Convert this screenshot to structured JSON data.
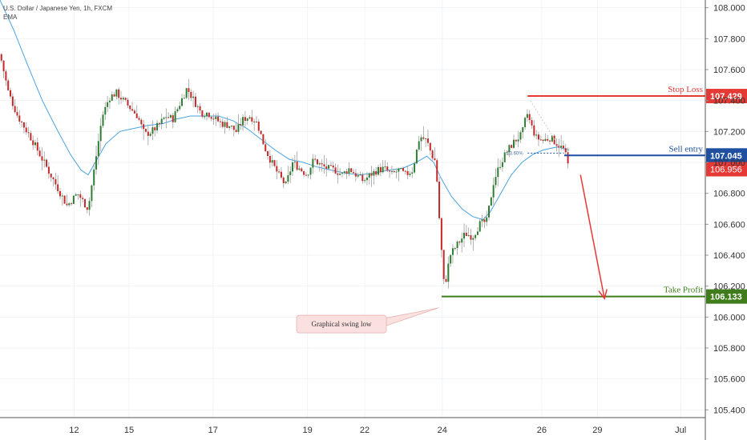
{
  "header": {
    "symbol": "U.S. Dollar / Japanese Yen, 1h, FXCM",
    "indicator": "EMA"
  },
  "colors": {
    "up_candle": "#2e7d32",
    "down_candle": "#c62828",
    "ema": "#4aa3df",
    "stop_loss": "#e53935",
    "sell_entry": "#1e4fa0",
    "take_profit": "#3f7d1c",
    "last_price": "#e53935",
    "grid": "#f0f3f7",
    "axis_text": "#333333"
  },
  "chart_data": {
    "type": "candlestick",
    "ylim": [
      105.35,
      108.05
    ],
    "yticks": [
      "108.000",
      "107.800",
      "107.600",
      "107.400",
      "107.200",
      "107.000",
      "106.800",
      "106.600",
      "106.400",
      "106.200",
      "106.000",
      "105.800",
      "105.600",
      "105.400"
    ],
    "yticks_values": [
      108.0,
      107.8,
      107.6,
      107.4,
      107.2,
      107.0,
      106.8,
      106.6,
      106.4,
      106.2,
      106.0,
      105.8,
      105.6,
      105.4
    ],
    "xticks": [
      {
        "label": "12",
        "pos": 0.105
      },
      {
        "label": "15",
        "pos": 0.183
      },
      {
        "label": "17",
        "pos": 0.302
      },
      {
        "label": "19",
        "pos": 0.436
      },
      {
        "label": "22",
        "pos": 0.517
      },
      {
        "label": "24",
        "pos": 0.627
      },
      {
        "label": "26",
        "pos": 0.768
      },
      {
        "label": "29",
        "pos": 0.847
      },
      {
        "label": "Jul",
        "pos": 0.965
      }
    ],
    "price_path": [
      [
        0.0,
        107.7
      ],
      [
        0.012,
        107.45
      ],
      [
        0.025,
        107.3
      ],
      [
        0.045,
        107.15
      ],
      [
        0.06,
        107.02
      ],
      [
        0.08,
        106.85
      ],
      [
        0.095,
        106.72
      ],
      [
        0.11,
        106.8
      ],
      [
        0.125,
        106.7
      ],
      [
        0.135,
        107.0
      ],
      [
        0.145,
        107.3
      ],
      [
        0.155,
        107.42
      ],
      [
        0.165,
        107.45
      ],
      [
        0.175,
        107.4
      ],
      [
        0.185,
        107.35
      ],
      [
        0.195,
        107.3
      ],
      [
        0.205,
        107.18
      ],
      [
        0.215,
        107.2
      ],
      [
        0.225,
        107.24
      ],
      [
        0.235,
        107.3
      ],
      [
        0.245,
        107.28
      ],
      [
        0.255,
        107.38
      ],
      [
        0.265,
        107.48
      ],
      [
        0.275,
        107.4
      ],
      [
        0.285,
        107.32
      ],
      [
        0.295,
        107.32
      ],
      [
        0.305,
        107.28
      ],
      [
        0.315,
        107.25
      ],
      [
        0.325,
        107.24
      ],
      [
        0.335,
        107.2
      ],
      [
        0.345,
        107.28
      ],
      [
        0.355,
        107.3
      ],
      [
        0.365,
        107.25
      ],
      [
        0.375,
        107.1
      ],
      [
        0.385,
        107.0
      ],
      [
        0.395,
        106.92
      ],
      [
        0.405,
        106.85
      ],
      [
        0.415,
        107.0
      ],
      [
        0.425,
        106.96
      ],
      [
        0.435,
        106.92
      ],
      [
        0.445,
        107.02
      ],
      [
        0.455,
        106.98
      ],
      [
        0.465,
        106.96
      ],
      [
        0.475,
        106.95
      ],
      [
        0.485,
        106.92
      ],
      [
        0.495,
        106.96
      ],
      [
        0.505,
        106.92
      ],
      [
        0.515,
        106.88
      ],
      [
        0.525,
        106.92
      ],
      [
        0.535,
        106.95
      ],
      [
        0.545,
        106.96
      ],
      [
        0.555,
        106.92
      ],
      [
        0.565,
        106.95
      ],
      [
        0.575,
        106.92
      ],
      [
        0.585,
        106.95
      ],
      [
        0.595,
        107.17
      ],
      [
        0.605,
        107.14
      ],
      [
        0.612,
        107.05
      ],
      [
        0.618,
        107.0
      ],
      [
        0.624,
        106.55
      ],
      [
        0.63,
        106.18
      ],
      [
        0.638,
        106.4
      ],
      [
        0.65,
        106.48
      ],
      [
        0.66,
        106.54
      ],
      [
        0.67,
        106.52
      ],
      [
        0.68,
        106.6
      ],
      [
        0.69,
        106.62
      ],
      [
        0.7,
        106.88
      ],
      [
        0.71,
        107.0
      ],
      [
        0.72,
        107.08
      ],
      [
        0.73,
        107.14
      ],
      [
        0.74,
        107.18
      ],
      [
        0.747,
        107.32
      ],
      [
        0.752,
        107.25
      ],
      [
        0.76,
        107.16
      ],
      [
        0.77,
        107.14
      ],
      [
        0.78,
        107.16
      ],
      [
        0.79,
        107.12
      ],
      [
        0.8,
        107.08
      ],
      [
        0.807,
        106.95
      ]
    ],
    "ema_path": [
      [
        0.0,
        108.05
      ],
      [
        0.02,
        107.85
      ],
      [
        0.04,
        107.62
      ],
      [
        0.06,
        107.4
      ],
      [
        0.08,
        107.22
      ],
      [
        0.1,
        107.05
      ],
      [
        0.115,
        106.95
      ],
      [
        0.125,
        106.92
      ],
      [
        0.135,
        107.0
      ],
      [
        0.15,
        107.12
      ],
      [
        0.17,
        107.2
      ],
      [
        0.19,
        107.22
      ],
      [
        0.21,
        107.24
      ],
      [
        0.23,
        107.25
      ],
      [
        0.25,
        107.28
      ],
      [
        0.27,
        107.3
      ],
      [
        0.29,
        107.3
      ],
      [
        0.31,
        107.3
      ],
      [
        0.33,
        107.27
      ],
      [
        0.35,
        107.22
      ],
      [
        0.37,
        107.15
      ],
      [
        0.39,
        107.08
      ],
      [
        0.41,
        107.02
      ],
      [
        0.43,
        107.0
      ],
      [
        0.45,
        106.97
      ],
      [
        0.47,
        106.95
      ],
      [
        0.49,
        106.93
      ],
      [
        0.51,
        106.92
      ],
      [
        0.53,
        106.93
      ],
      [
        0.55,
        106.95
      ],
      [
        0.57,
        106.96
      ],
      [
        0.59,
        107.0
      ],
      [
        0.605,
        107.04
      ],
      [
        0.615,
        107.0
      ],
      [
        0.625,
        106.9
      ],
      [
        0.64,
        106.78
      ],
      [
        0.655,
        106.7
      ],
      [
        0.67,
        106.65
      ],
      [
        0.685,
        106.63
      ],
      [
        0.695,
        106.68
      ],
      [
        0.71,
        106.8
      ],
      [
        0.725,
        106.92
      ],
      [
        0.74,
        107.0
      ],
      [
        0.755,
        107.05
      ],
      [
        0.77,
        107.08
      ],
      [
        0.79,
        107.1
      ],
      [
        0.807,
        107.08
      ]
    ],
    "levels": [
      {
        "key": "stop_loss",
        "label": "Stop Loss",
        "price": 107.429,
        "price_text": "107.429",
        "x_start": 0.748
      },
      {
        "key": "sell_entry",
        "label": "Sell entry",
        "price": 107.045,
        "price_text": "107.045",
        "x_start": 0.8
      },
      {
        "key": "take_profit",
        "label": "Take Profit",
        "price": 106.133,
        "price_text": "106.133",
        "x_start": 0.626
      }
    ],
    "last_price": {
      "price": 106.956,
      "price_text": "106.956"
    },
    "fib": {
      "label": "23.60%",
      "price": 107.06,
      "x_start": 0.748,
      "x_end": 0.8
    },
    "arrow": {
      "from": [
        0.823,
        106.92
      ],
      "to": [
        0.857,
        106.12
      ]
    },
    "trendline": {
      "from": [
        0.752,
        107.4
      ],
      "to": [
        0.8,
        107.05
      ]
    },
    "callout": {
      "text": "Graphical swing low",
      "price": 105.96,
      "x": 0.458,
      "target": [
        0.622,
        106.06
      ]
    }
  }
}
